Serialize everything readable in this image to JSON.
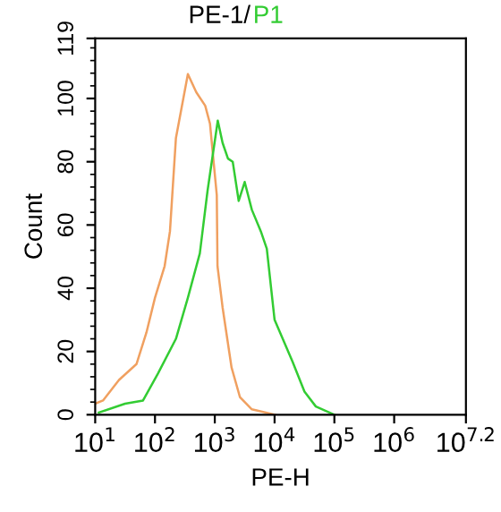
{
  "chart_data": {
    "type": "line",
    "title": "PE-1/",
    "xlabel": "PE-H",
    "ylabel": "Count",
    "log": "x",
    "xlim": [
      10,
      15848932
    ],
    "ylim": [
      0,
      119
    ],
    "xticks": [
      {
        "value": 10,
        "label": "10$^{1}$"
      },
      {
        "value": 100,
        "label": "10$^{2}$"
      },
      {
        "value": 1000,
        "label": "10$^{3}$"
      },
      {
        "value": 10000,
        "label": "10$^{4}$"
      },
      {
        "value": 100000,
        "label": "10$^{5}$"
      },
      {
        "value": 1000000,
        "label": "10$^{6}$"
      },
      {
        "value": 15848932,
        "label": "10$^{7.2}$"
      }
    ],
    "yticks": [
      0,
      20,
      40,
      60,
      80,
      100,
      119
    ],
    "grid": false,
    "legend": false,
    "marker": "none",
    "line_style": "solid",
    "series": [
      {
        "color": "#f0a060",
        "x": [
          10,
          13.5,
          25,
          49,
          72,
          100,
          145,
          178,
          224,
          355,
          490,
          692,
          832,
          1080,
          1110,
          1349,
          1905,
          2630,
          4169,
          10233
        ],
        "values": [
          3.5,
          4.5,
          11,
          16,
          26,
          37,
          47,
          58,
          87.5,
          107.7,
          102,
          97.7,
          92,
          69.5,
          47,
          34,
          15,
          5.6,
          1.7,
          0
        ]
      },
      {
        "name": "P1",
        "color": "#33cc33",
        "x": [
          11.5,
          31.6,
          63.1,
          112,
          224,
          355,
          562,
          759,
          1122,
          1349,
          1660,
          1995,
          2512,
          3162,
          4169,
          5888,
          7413,
          10000,
          19953,
          31623,
          48978,
          100000
        ],
        "values": [
          0.7,
          3.5,
          4.5,
          13,
          24,
          37,
          51,
          71,
          93,
          86,
          81,
          80,
          67.6,
          73.6,
          64.8,
          58,
          52.5,
          30,
          16.8,
          7.3,
          2.6,
          0
        ]
      }
    ]
  }
}
